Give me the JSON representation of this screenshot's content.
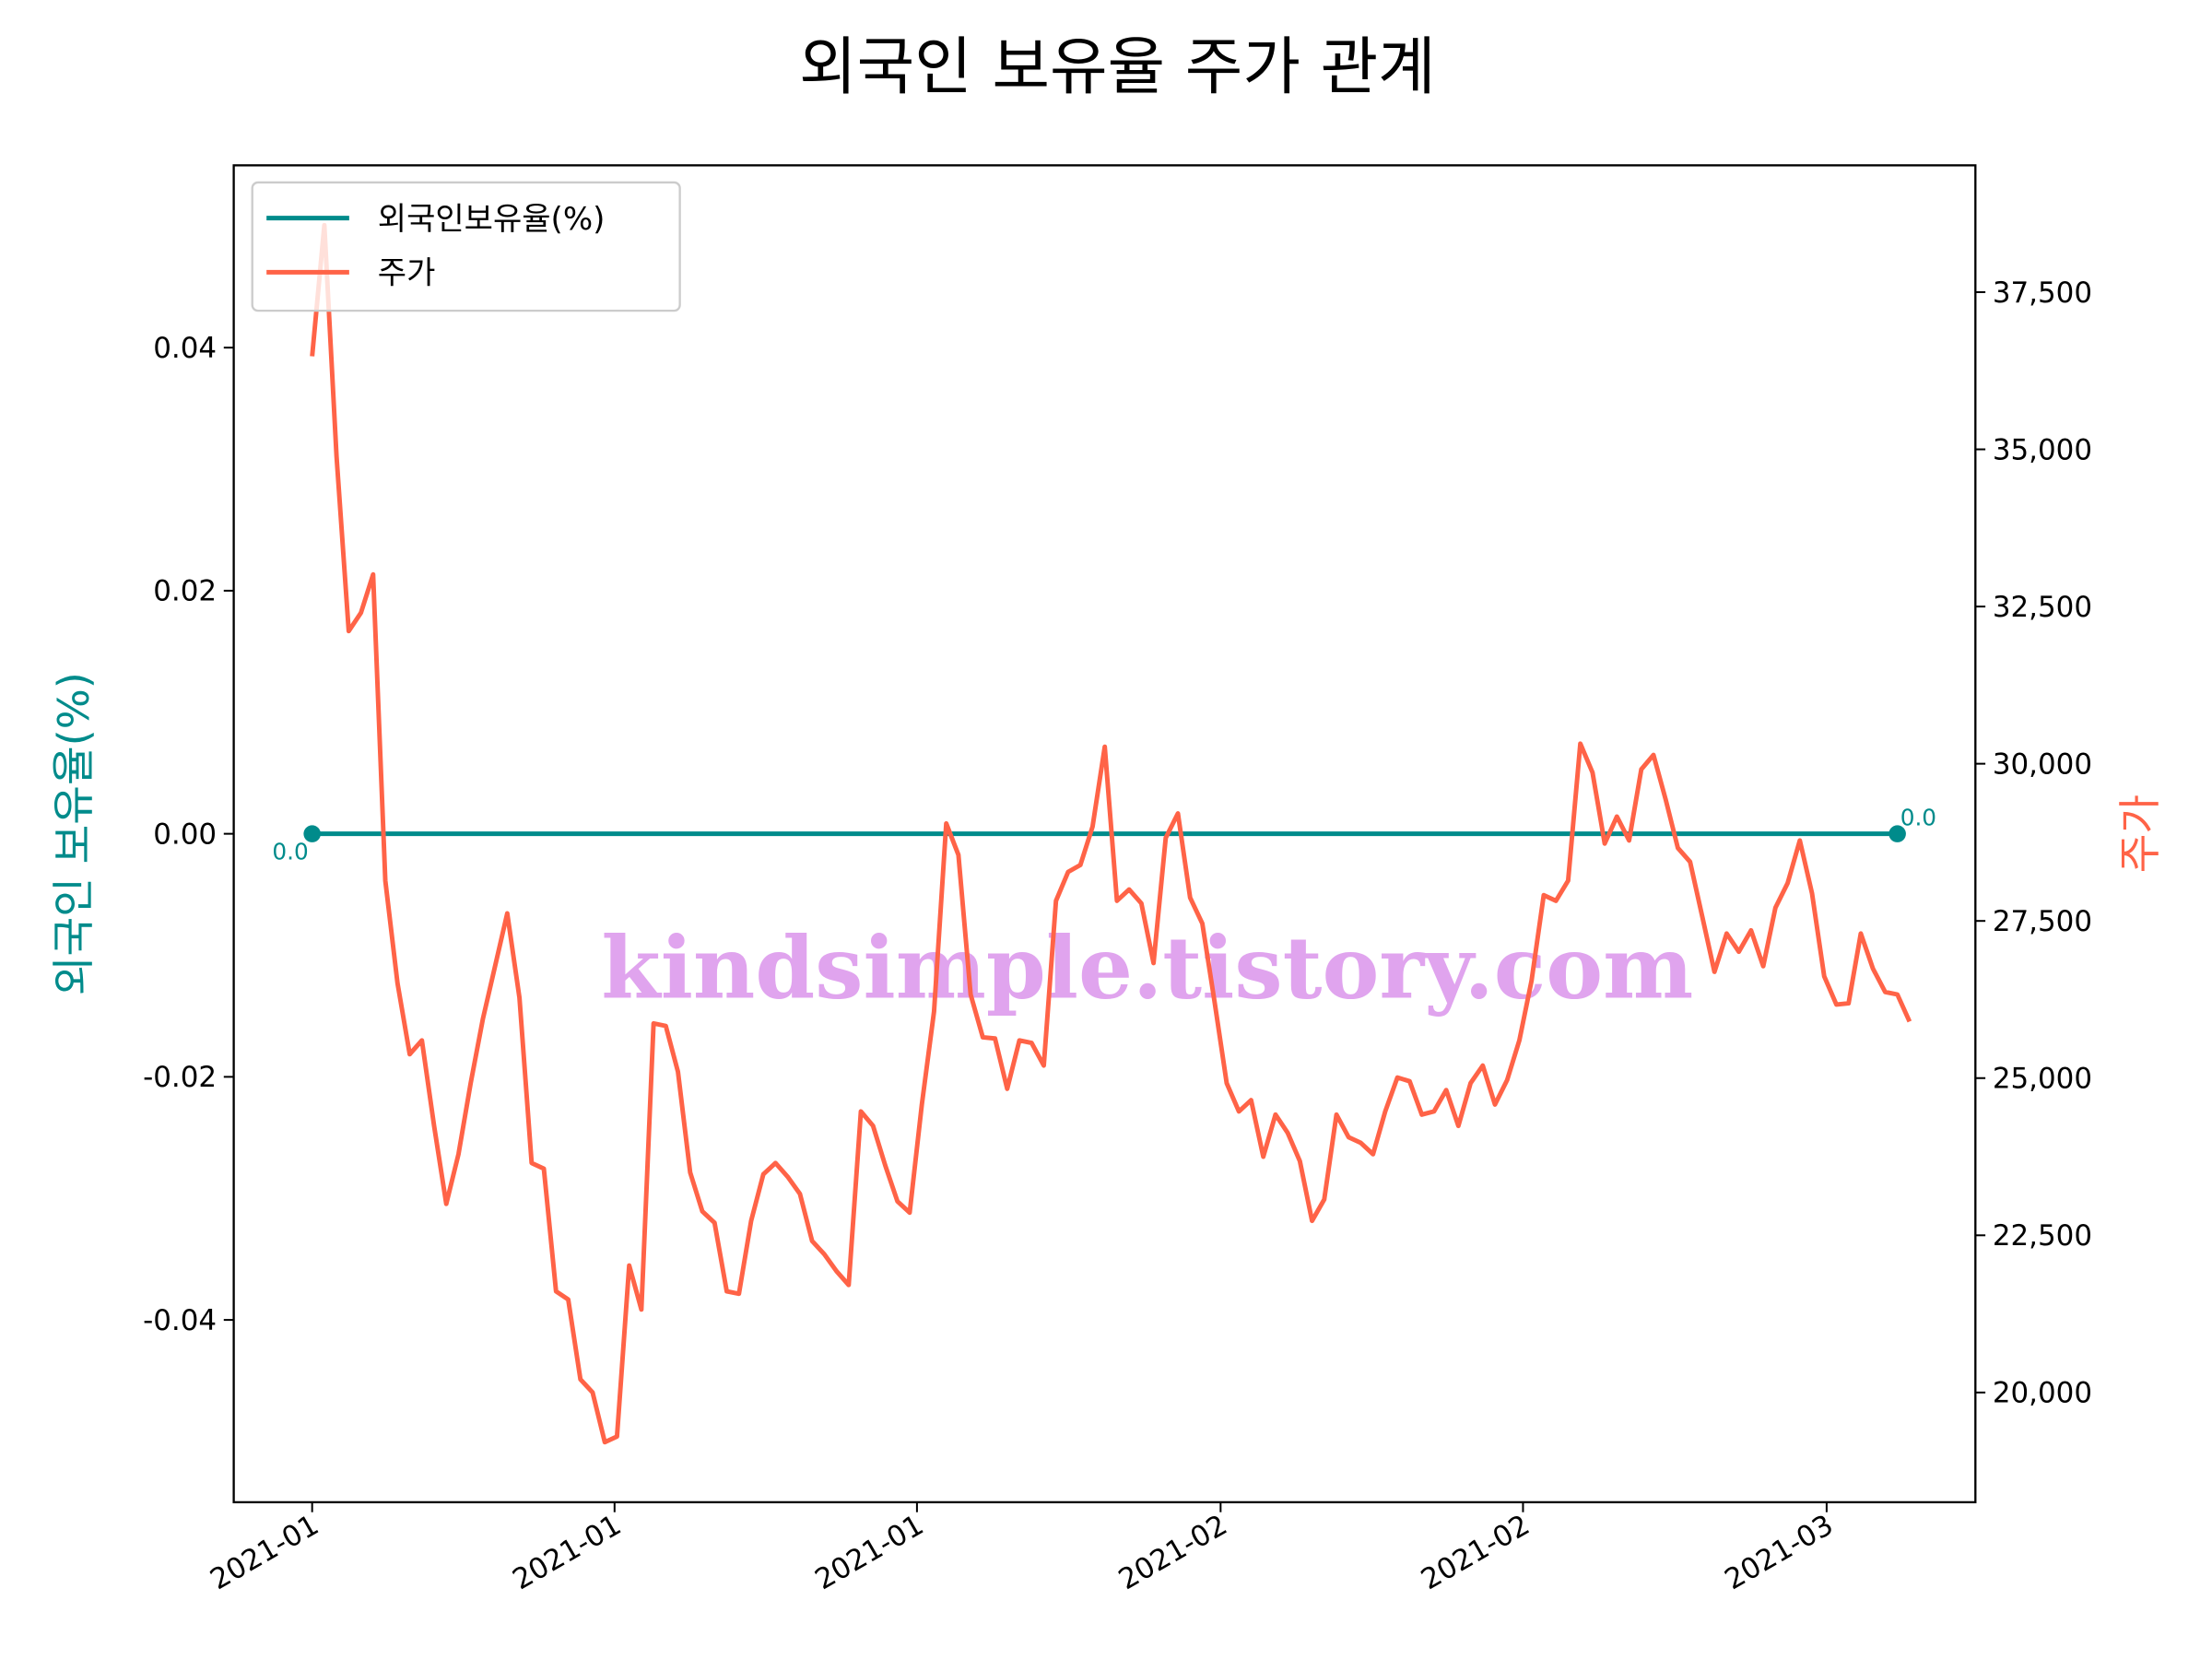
{
  "chart_data": {
    "type": "line",
    "title": "외국인 보유율 주가 관계",
    "ylabel": "외국인 보유율(%)",
    "y2label": "주가",
    "watermark": "kindsimple.tistory.com",
    "legend": "upper left",
    "xlim": [
      -6.43,
      136.4
    ],
    "xticks": [
      {
        "value": 0,
        "label": "2021-01"
      },
      {
        "value": 24.8,
        "label": "2021-01"
      },
      {
        "value": 49.6,
        "label": "2021-01"
      },
      {
        "value": 74.5,
        "label": "2021-02"
      },
      {
        "value": 99.3,
        "label": "2021-02"
      },
      {
        "value": 124.2,
        "label": "2021-03"
      }
    ],
    "ylim": [
      -0.055,
      0.055
    ],
    "yticks": [
      -0.04,
      -0.02,
      {
        "value": 0,
        "label": "0.00"
      },
      0.02,
      0.04
    ],
    "y2lim": [
      18255,
      39517
    ],
    "y2ticks": [
      {
        "value": 20000,
        "label": "20,000"
      },
      {
        "value": 22500,
        "label": "22,500"
      },
      {
        "value": 25000,
        "label": "25,000"
      },
      {
        "value": 27500,
        "label": "27,500"
      },
      {
        "value": 30000,
        "label": "30,000"
      },
      {
        "value": 32500,
        "label": "32,500"
      },
      {
        "value": 35000,
        "label": "35,000"
      },
      {
        "value": 37500,
        "label": "37,500"
      }
    ],
    "series": [
      {
        "name": "외국인보유율(%)",
        "color": "#008b8b",
        "values": [
          0,
          0,
          0,
          0,
          0,
          0,
          0,
          0,
          0,
          0,
          0,
          0,
          0,
          0,
          0,
          0,
          0,
          0,
          0,
          0,
          0,
          0,
          0,
          0,
          0,
          0,
          0,
          0,
          0,
          0,
          0,
          0,
          0,
          0,
          0,
          0,
          0,
          0,
          0,
          0,
          0,
          0,
          0,
          0,
          0,
          0,
          0,
          0,
          0,
          0,
          0,
          0,
          0,
          0,
          0,
          0,
          0,
          0,
          0,
          0,
          0,
          0,
          0,
          0,
          0,
          0,
          0,
          0,
          0,
          0,
          0,
          0,
          0,
          0,
          0,
          0,
          0,
          0,
          0,
          0,
          0,
          0,
          0,
          0,
          0,
          0,
          0,
          0,
          0,
          0,
          0,
          0,
          0,
          0,
          0,
          0,
          0,
          0,
          0,
          0,
          0,
          0,
          0,
          0,
          0,
          0,
          0,
          0,
          0,
          0,
          0,
          0,
          0,
          0,
          0,
          0,
          0,
          0,
          0,
          0,
          0,
          0,
          0,
          0,
          0,
          0,
          0,
          0,
          0,
          0,
          0
        ],
        "value_labels": [
          "0.0",
          null,
          null,
          null,
          null,
          null,
          null,
          null,
          null,
          null,
          null,
          null,
          null,
          null,
          null,
          null,
          null,
          null,
          null,
          null,
          null,
          null,
          null,
          null,
          null,
          null,
          null,
          null,
          null,
          null,
          null,
          null,
          null,
          null,
          null,
          null,
          null,
          null,
          null,
          null,
          null,
          null,
          null,
          null,
          null,
          null,
          null,
          null,
          null,
          null,
          null,
          null,
          null,
          null,
          null,
          null,
          null,
          null,
          null,
          null,
          null,
          null,
          null,
          null,
          null,
          null,
          null,
          null,
          null,
          null,
          null,
          null,
          null,
          null,
          null,
          null,
          null,
          null,
          null,
          null,
          null,
          null,
          null,
          null,
          null,
          null,
          null,
          null,
          null,
          null,
          null,
          null,
          null,
          null,
          null,
          null,
          null,
          null,
          null,
          null,
          null,
          null,
          null,
          null,
          null,
          null,
          null,
          null,
          null,
          null,
          null,
          null,
          null,
          null,
          null,
          null,
          null,
          null,
          null,
          null,
          null,
          null,
          null,
          null,
          null,
          null,
          null,
          null,
          null,
          null,
          "0.0"
        ]
      },
      {
        "name": "주가",
        "color": "#ff6347",
        "axis": "y2",
        "values": [
          36480,
          38565,
          34890,
          32110,
          32400,
          33010,
          28140,
          26510,
          25380,
          25600,
          24240,
          23000,
          23790,
          24920,
          25940,
          26780,
          27620,
          26280,
          23650,
          23560,
          21610,
          21480,
          20210,
          20000,
          19210,
          19300,
          22020,
          21320,
          25870,
          25830,
          25100,
          23500,
          22880,
          22700,
          21610,
          21570,
          22730,
          23470,
          23650,
          23430,
          23160,
          22410,
          22200,
          21930,
          21710,
          24470,
          24240,
          23610,
          23040,
          22860,
          24580,
          26060,
          29050,
          28550,
          26330,
          25650,
          25630,
          24830,
          25600,
          25560,
          25200,
          27820,
          28280,
          28390,
          29000,
          30270,
          27820,
          28000,
          27780,
          26830,
          28820,
          29210,
          27870,
          27460,
          26220,
          24920,
          24470,
          24650,
          23750,
          24420,
          24130,
          23680,
          22730,
          23070,
          24420,
          24060,
          23970,
          23790,
          24470,
          25010,
          24950,
          24420,
          24470,
          24810,
          24240,
          24920,
          25200,
          24580,
          24970,
          25600,
          26550,
          27910,
          27820,
          28140,
          30320,
          29860,
          28730,
          29160,
          28780,
          29910,
          30140,
          29430,
          28660,
          28440,
          27570,
          26690,
          27300,
          27010,
          27350,
          26780,
          27710,
          28100,
          28780,
          27940,
          26620,
          26170,
          26190,
          27300,
          26740,
          26370,
          26330,
          25900
        ]
      }
    ]
  }
}
